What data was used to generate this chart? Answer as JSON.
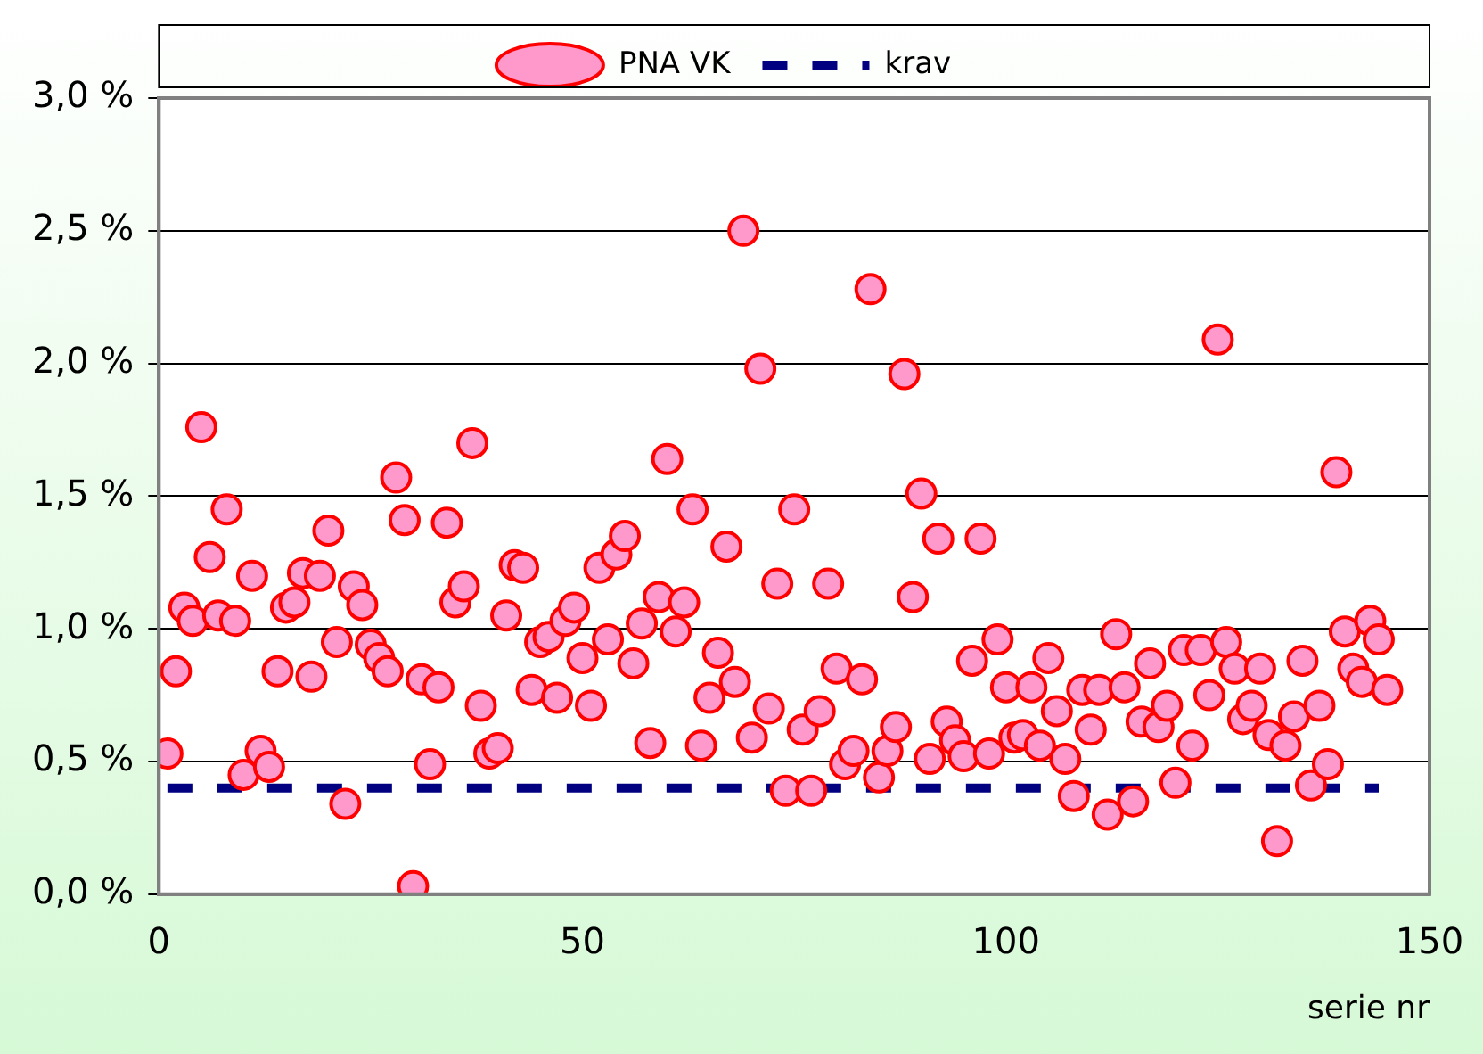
{
  "chart_data": {
    "type": "scatter",
    "xlabel": "serie nr",
    "legend": "top",
    "grid": "y",
    "marker": "circle",
    "xlim": [
      0,
      150
    ],
    "xticks": [
      0,
      50,
      100,
      150
    ],
    "ylim": [
      0,
      3
    ],
    "yticks": [
      {
        "value": 0,
        "label": "0,0 %"
      },
      {
        "value": 0.5,
        "label": "0,5 %"
      },
      {
        "value": 1,
        "label": "1,0 %"
      },
      {
        "value": 1.5,
        "label": "1,5 %"
      },
      {
        "value": 2,
        "label": "2,0 %"
      },
      {
        "value": 2.5,
        "label": "2,5 %"
      },
      {
        "value": 3,
        "label": "3,0 %"
      }
    ],
    "series": [
      {
        "name": "PNA VK",
        "color": "#ff99cc",
        "x": [
          1,
          2,
          3,
          4,
          5,
          6,
          7,
          8,
          9,
          10,
          11,
          12,
          13,
          14,
          15,
          16,
          17,
          18,
          19,
          20,
          21,
          22,
          23,
          24,
          25,
          26,
          27,
          28,
          29,
          30,
          31,
          32,
          33,
          34,
          35,
          36,
          37,
          38,
          39,
          40,
          41,
          42,
          43,
          44,
          45,
          46,
          47,
          48,
          49,
          50,
          51,
          52,
          53,
          54,
          55,
          56,
          57,
          58,
          59,
          60,
          61,
          62,
          63,
          64,
          65,
          66,
          67,
          68,
          69,
          70,
          71,
          72,
          73,
          74,
          75,
          76,
          77,
          78,
          79,
          80,
          81,
          82,
          83,
          84,
          85,
          86,
          87,
          88,
          89,
          90,
          91,
          92,
          93,
          94,
          95,
          96,
          97,
          98,
          99,
          100,
          101,
          102,
          103,
          104,
          105,
          106,
          107,
          108,
          109,
          110,
          111,
          112,
          113,
          114,
          115,
          116,
          117,
          118,
          119,
          120,
          121,
          122,
          123,
          124,
          125,
          126,
          127,
          128,
          129,
          130,
          131,
          132,
          133,
          134,
          135,
          136,
          137,
          138,
          139,
          140,
          141,
          142,
          143,
          144,
          145
        ],
        "values": [
          0.53,
          0.84,
          1.08,
          1.03,
          1.76,
          1.27,
          1.05,
          1.45,
          1.03,
          0.45,
          1.2,
          0.54,
          0.48,
          0.84,
          1.08,
          1.1,
          1.21,
          0.82,
          1.2,
          1.37,
          0.95,
          0.34,
          1.16,
          1.09,
          0.94,
          0.89,
          0.84,
          1.57,
          1.41,
          0.03,
          0.81,
          0.49,
          0.78,
          1.4,
          1.1,
          1.16,
          1.7,
          0.71,
          0.53,
          0.55,
          1.05,
          1.24,
          1.23,
          0.77,
          0.95,
          0.97,
          0.74,
          1.03,
          1.08,
          0.89,
          0.71,
          1.23,
          0.96,
          1.28,
          1.35,
          0.87,
          1.02,
          0.57,
          1.12,
          1.64,
          0.99,
          1.1,
          1.45,
          0.56,
          0.74,
          0.91,
          1.31,
          0.8,
          2.5,
          0.59,
          1.98,
          0.7,
          1.17,
          0.39,
          1.45,
          0.62,
          0.39,
          0.69,
          1.17,
          0.85,
          0.49,
          0.54,
          0.81,
          2.28,
          0.44,
          0.54,
          0.63,
          1.96,
          1.12,
          1.51,
          0.51,
          1.34,
          0.65,
          0.58,
          0.52,
          0.88,
          1.34,
          0.53,
          0.96,
          0.78,
          0.59,
          0.6,
          0.78,
          0.56,
          0.89,
          0.69,
          0.51,
          0.37,
          0.77,
          0.62,
          0.77,
          0.3,
          0.98,
          0.78,
          0.35,
          0.65,
          0.87,
          0.63,
          0.71,
          0.42,
          0.92,
          0.56,
          0.92,
          0.75,
          2.09,
          0.95,
          0.85,
          0.66,
          0.71,
          0.85,
          0.6,
          0.2,
          0.56,
          0.67,
          0.88,
          0.41,
          0.71,
          0.49,
          1.59,
          0.99,
          0.85,
          0.8,
          1.03,
          0.96,
          0.77
        ]
      },
      {
        "name": "krav",
        "type": "line",
        "color": "#000080",
        "line_style": "dashed",
        "marker": "none",
        "x": [
          1,
          144
        ],
        "values": [
          0.4,
          0.4
        ]
      }
    ]
  }
}
